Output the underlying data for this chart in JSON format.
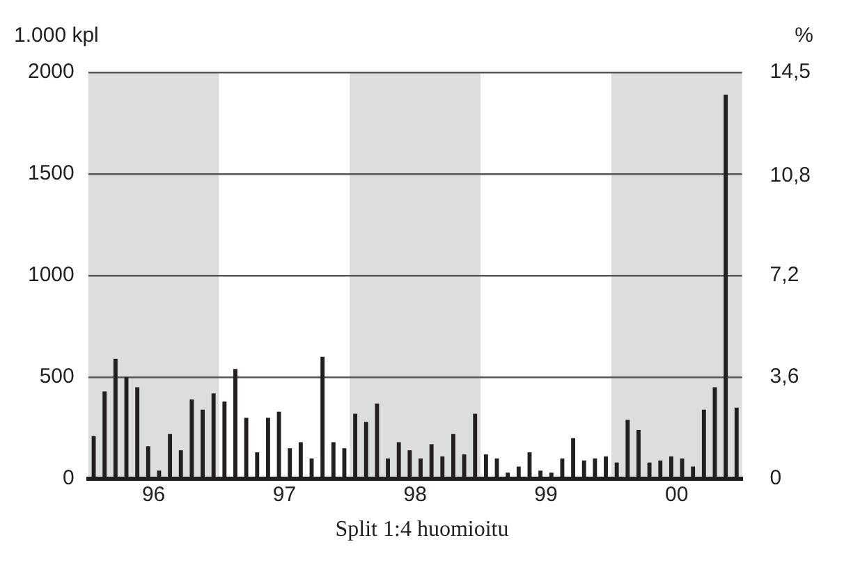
{
  "chart_data": {
    "type": "bar",
    "ylabel": "1.000 kpl",
    "y2label": "%",
    "annotations": [
      "Split 1:4 huomioitu"
    ],
    "categories": [
      "96",
      "97",
      "98",
      "99",
      "00"
    ],
    "series": [
      {
        "color": "#231f20",
        "values": [
          210,
          380,
          320,
          120,
          80
        ]
      },
      {
        "color": "#231f20",
        "values": [
          430,
          540,
          280,
          100,
          290
        ]
      },
      {
        "color": "#231f20",
        "values": [
          590,
          300,
          370,
          30,
          240
        ]
      },
      {
        "color": "#231f20",
        "values": [
          500,
          130,
          100,
          60,
          80
        ]
      },
      {
        "color": "#231f20",
        "values": [
          450,
          300,
          180,
          130,
          90
        ]
      },
      {
        "color": "#231f20",
        "values": [
          160,
          330,
          140,
          40,
          110
        ]
      },
      {
        "color": "#231f20",
        "values": [
          40,
          150,
          100,
          30,
          100
        ]
      },
      {
        "color": "#231f20",
        "values": [
          220,
          180,
          170,
          100,
          60
        ]
      },
      {
        "color": "#231f20",
        "values": [
          140,
          100,
          110,
          200,
          340
        ]
      },
      {
        "color": "#231f20",
        "values": [
          390,
          600,
          220,
          90,
          450
        ]
      },
      {
        "color": "#231f20",
        "values": [
          340,
          180,
          120,
          100,
          1890
        ]
      },
      {
        "color": "#231f20",
        "values": [
          420,
          150,
          320,
          110,
          350
        ]
      }
    ],
    "ylim": [
      0,
      2000
    ],
    "yticks": [
      0,
      500,
      1000,
      1500,
      2000
    ],
    "y2lim": [
      0,
      14.5
    ],
    "y2ticks": [
      0,
      {
        "value": 3.625,
        "label": "3,6"
      },
      {
        "value": 7.25,
        "label": "7,2"
      },
      {
        "value": 10.8,
        "label": "10,8"
      },
      {
        "value": 14.5,
        "label": "14,5"
      }
    ],
    "bands": [
      {
        "axis": "x",
        "from": "96",
        "to": "96",
        "color": "#dcdddf"
      },
      {
        "axis": "x",
        "from": "98",
        "to": "98",
        "color": "#dcdddf"
      },
      {
        "axis": "x",
        "from": "00",
        "to": "00",
        "color": "#dcdddf"
      }
    ],
    "grid": "y"
  }
}
